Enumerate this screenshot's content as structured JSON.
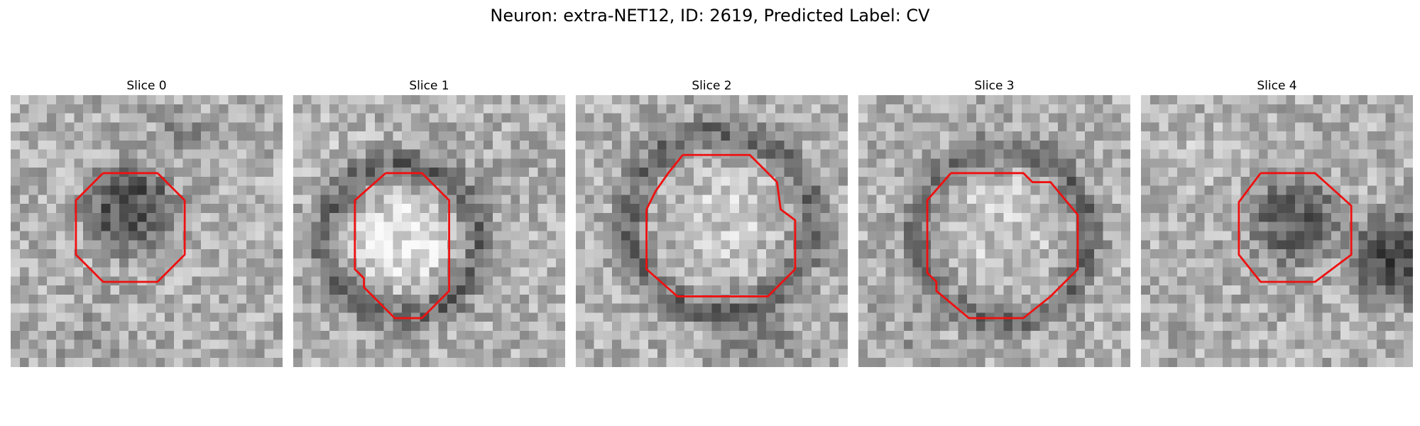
{
  "title": "Neuron: extra-NET12, ID: 2619, Predicted Label: CV",
  "slices": [
    {
      "label": "Slice 0"
    },
    {
      "label": "Slice 1"
    },
    {
      "label": "Slice 2"
    },
    {
      "label": "Slice 3"
    },
    {
      "label": "Slice 4"
    }
  ],
  "colors": {
    "roi_outline": "#ee1111",
    "background": "#ffffff",
    "colormap": "grayscale"
  }
}
